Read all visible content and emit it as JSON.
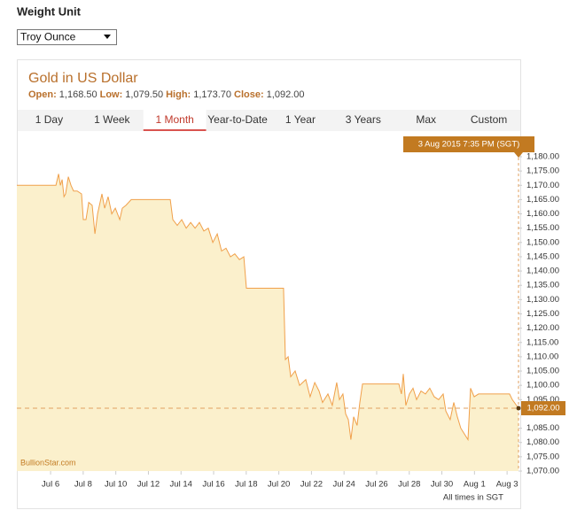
{
  "weight_unit": {
    "label": "Weight Unit",
    "selected": "Troy Ounce"
  },
  "panel": {
    "title": "Gold in US Dollar",
    "stats": [
      {
        "label": "Open:",
        "value": "1,168.50"
      },
      {
        "label": "Low:",
        "value": "1,079.50"
      },
      {
        "label": "High:",
        "value": "1,173.70"
      },
      {
        "label": "Close:",
        "value": "1,092.00"
      }
    ],
    "tabs": [
      "1 Day",
      "1 Week",
      "1 Month",
      "Year-to-Date",
      "1 Year",
      "3 Years",
      "Max",
      "Custom"
    ],
    "selected_tab": 2
  },
  "chart_data": {
    "type": "area",
    "color": "#f0a04b",
    "fill": "#fbf0cc",
    "x": [
      3.93,
      6.33,
      6.49,
      6.6,
      6.71,
      6.82,
      6.92,
      7.09,
      7.25,
      7.41,
      7.63,
      7.9,
      8.01,
      8.17,
      8.34,
      8.55,
      8.72,
      8.88,
      9.15,
      9.32,
      9.53,
      9.75,
      9.97,
      10.24,
      10.4,
      10.62,
      10.95,
      11.16,
      13.34,
      13.5,
      13.77,
      14.04,
      14.32,
      14.59,
      14.86,
      15.13,
      15.4,
      15.67,
      15.95,
      16.22,
      16.49,
      16.76,
      17.03,
      17.3,
      17.58,
      17.85,
      18.01,
      20.29,
      20.4,
      20.57,
      20.73,
      21.0,
      21.27,
      21.65,
      21.92,
      22.2,
      22.47,
      22.68,
      23.01,
      23.28,
      23.55,
      23.72,
      23.93,
      24.1,
      24.26,
      24.42,
      24.59,
      24.8,
      24.97,
      25.13,
      27.36,
      27.52,
      27.63,
      27.79,
      28.01,
      28.23,
      28.45,
      28.72,
      28.99,
      29.26,
      29.53,
      29.8,
      30.08,
      30.24,
      30.51,
      30.73,
      30.95,
      31.16,
      31.38,
      31.6,
      31.76,
      31.98,
      32.25,
      34.15,
      34.32,
      34.7
    ],
    "values": [
      1170,
      1170,
      1174,
      1170,
      1172,
      1166,
      1167,
      1173,
      1170,
      1168,
      1168,
      1167,
      1158,
      1158,
      1164,
      1163,
      1153,
      1160,
      1167,
      1162,
      1166,
      1160,
      1162,
      1158,
      1162,
      1163,
      1165,
      1165,
      1165,
      1158,
      1156,
      1158,
      1155,
      1157,
      1155,
      1157,
      1154,
      1155,
      1150,
      1153,
      1147,
      1148,
      1145,
      1146,
      1144,
      1145,
      1134,
      1134,
      1109,
      1110,
      1103,
      1105,
      1100,
      1102,
      1096,
      1101,
      1098,
      1094,
      1097,
      1093,
      1101,
      1095,
      1097,
      1090,
      1088,
      1081,
      1089,
      1086,
      1094,
      1100.5,
      1100.5,
      1097,
      1104,
      1093,
      1097,
      1099,
      1095,
      1098,
      1097,
      1099,
      1096,
      1095,
      1097,
      1091,
      1088,
      1094,
      1089,
      1085,
      1083,
      1081,
      1099,
      1096,
      1097,
      1097,
      1095,
      1092
    ],
    "xlim": [
      3.93,
      34.7
    ],
    "xticks": [
      {
        "value": 6,
        "label": "Jul 6"
      },
      {
        "value": 8,
        "label": "Jul 8"
      },
      {
        "value": 10,
        "label": "Jul 10"
      },
      {
        "value": 12,
        "label": "Jul 12"
      },
      {
        "value": 14,
        "label": "Jul 14"
      },
      {
        "value": 16,
        "label": "Jul 16"
      },
      {
        "value": 18,
        "label": "Jul 18"
      },
      {
        "value": 20,
        "label": "Jul 20"
      },
      {
        "value": 22,
        "label": "Jul 22"
      },
      {
        "value": 24,
        "label": "Jul 24"
      },
      {
        "value": 26,
        "label": "Jul 26"
      },
      {
        "value": 28,
        "label": "Jul 28"
      },
      {
        "value": 30,
        "label": "Jul 30"
      },
      {
        "value": 32,
        "label": "Aug 1"
      },
      {
        "value": 34,
        "label": "Aug 3"
      }
    ],
    "ylim": [
      1070,
      1180
    ],
    "yticks": [
      {
        "value": 1070,
        "label": "1,070.00"
      },
      {
        "value": 1075,
        "label": "1,075.00"
      },
      {
        "value": 1080,
        "label": "1,080.00"
      },
      {
        "value": 1085,
        "label": "1,085.00"
      },
      {
        "value": 1095,
        "label": "1,095.00"
      },
      {
        "value": 1100,
        "label": "1,100.00"
      },
      {
        "value": 1105,
        "label": "1,105.00"
      },
      {
        "value": 1110,
        "label": "1,110.00"
      },
      {
        "value": 1115,
        "label": "1,115.00"
      },
      {
        "value": 1120,
        "label": "1,120.00"
      },
      {
        "value": 1125,
        "label": "1,125.00"
      },
      {
        "value": 1130,
        "label": "1,130.00"
      },
      {
        "value": 1135,
        "label": "1,135.00"
      },
      {
        "value": 1140,
        "label": "1,140.00"
      },
      {
        "value": 1145,
        "label": "1,145.00"
      },
      {
        "value": 1150,
        "label": "1,150.00"
      },
      {
        "value": 1155,
        "label": "1,155.00"
      },
      {
        "value": 1160,
        "label": "1,160.00"
      },
      {
        "value": 1165,
        "label": "1,165.00"
      },
      {
        "value": 1170,
        "label": "1,170.00"
      },
      {
        "value": 1175,
        "label": "1,175.00"
      },
      {
        "value": 1180,
        "label": "1,180.00"
      }
    ],
    "last": {
      "value": 1092,
      "label": "1,092.00"
    },
    "tooltip": "3 Aug 2015 7:35 PM (SGT)",
    "source": "BullionStar.com",
    "note": "All times in SGT"
  }
}
